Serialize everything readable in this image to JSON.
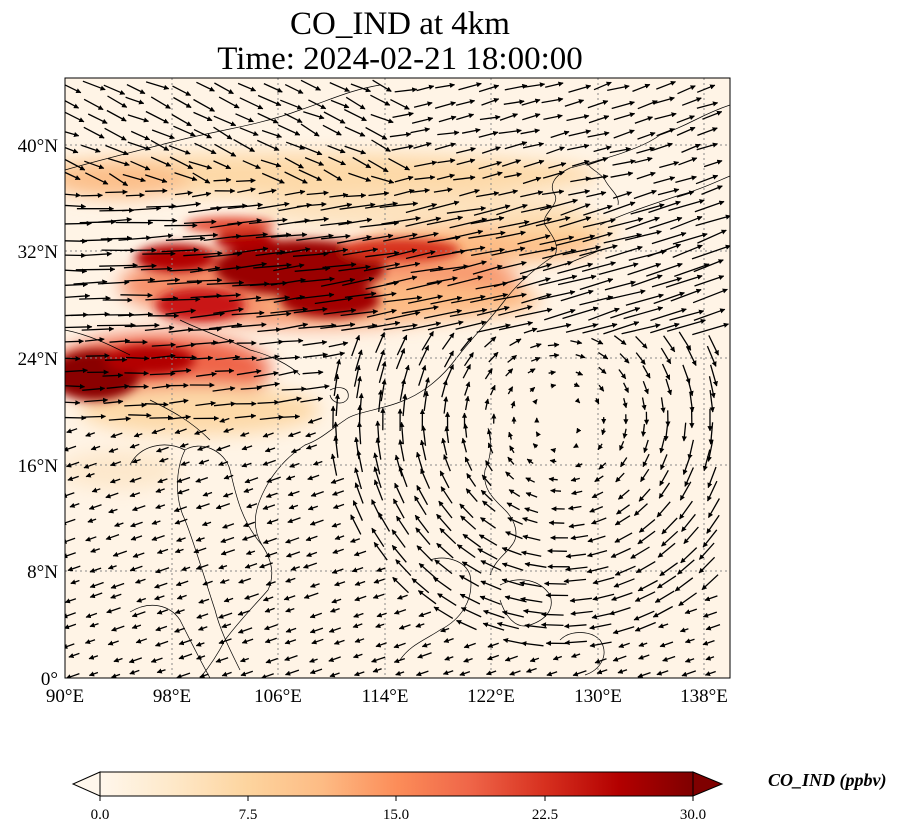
{
  "title": {
    "line1": "CO_IND at 4km",
    "line2": "Time: 2024-02-21 18:00:00"
  },
  "axes": {
    "lon_ticks": [
      "90°E",
      "98°E",
      "106°E",
      "114°E",
      "122°E",
      "130°E",
      "138°E"
    ],
    "lat_ticks": [
      "40°N",
      "32°N",
      "24°N",
      "16°N",
      "8°N",
      "0°"
    ],
    "lon_range": [
      90,
      140
    ],
    "lat_range": [
      0,
      45
    ],
    "gridlines": "dotted"
  },
  "colorbar": {
    "label": "CO_IND (ppbv)",
    "ticks": [
      "0.0",
      "7.5",
      "15.0",
      "22.5",
      "30.0"
    ],
    "range": [
      0,
      30
    ],
    "colormap": "OrRd",
    "colors": [
      "#fff7ec",
      "#fee8c8",
      "#fdd49e",
      "#fdbb84",
      "#fc8d59",
      "#ef6548",
      "#d7301f",
      "#b30000",
      "#7f0000"
    ],
    "extend": "both"
  },
  "map_content": {
    "field": "CO_IND concentration with wind vectors",
    "high_regions": [
      "Sichuan Basin / southwest China",
      "Northern Indochina / Myanmar",
      "Yangtze plume toward East China Sea"
    ],
    "wind_pattern": "westerly jet north of 20°N, anticyclonic circulation over western Pacific"
  }
}
